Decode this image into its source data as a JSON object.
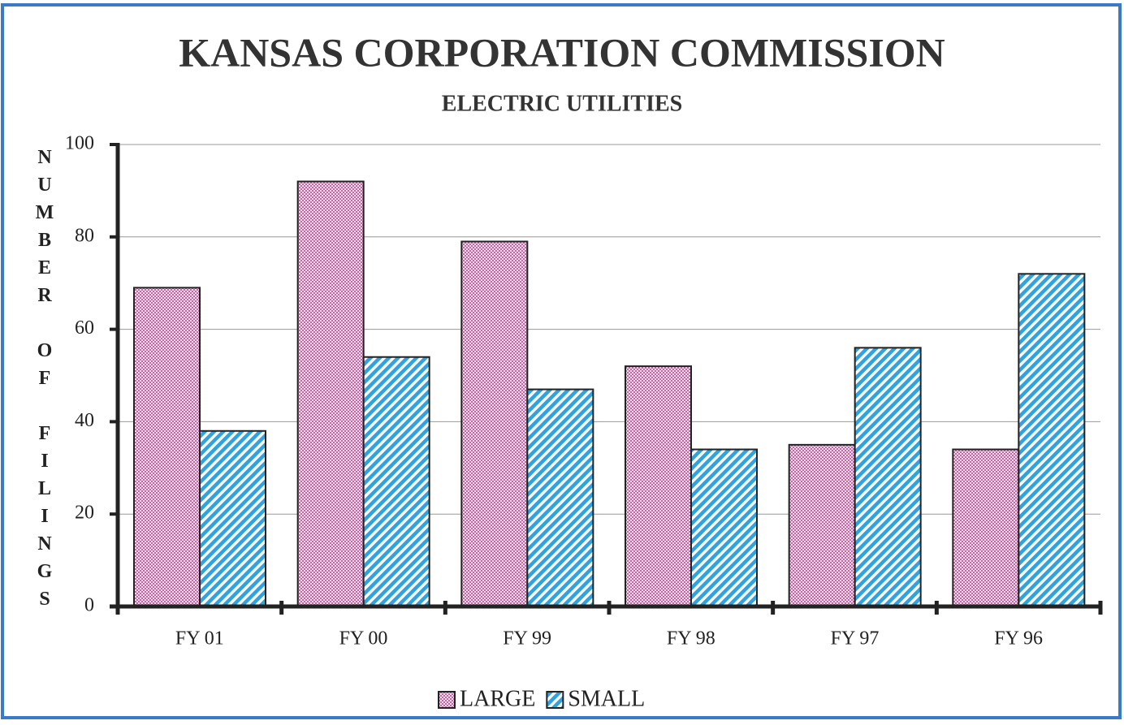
{
  "chart_data": {
    "type": "bar",
    "title": "KANSAS CORPORATION COMMISSION",
    "subtitle": "ELECTRIC UTILITIES",
    "y_label": "NUMBER OF FILINGS",
    "categories": [
      "FY 01",
      "FY 00",
      "FY 99",
      "FY 98",
      "FY 97",
      "FY 96"
    ],
    "series": [
      {
        "name": "LARGE",
        "color": "#c06aa4",
        "values": [
          69,
          92,
          79,
          52,
          35,
          34
        ]
      },
      {
        "name": "SMALL",
        "color": "#2ea3e0",
        "values": [
          38,
          54,
          47,
          34,
          56,
          72
        ]
      }
    ],
    "ylim": [
      0,
      100
    ],
    "yticks": [
      0,
      20,
      40,
      60,
      80,
      100
    ],
    "grid": true
  }
}
